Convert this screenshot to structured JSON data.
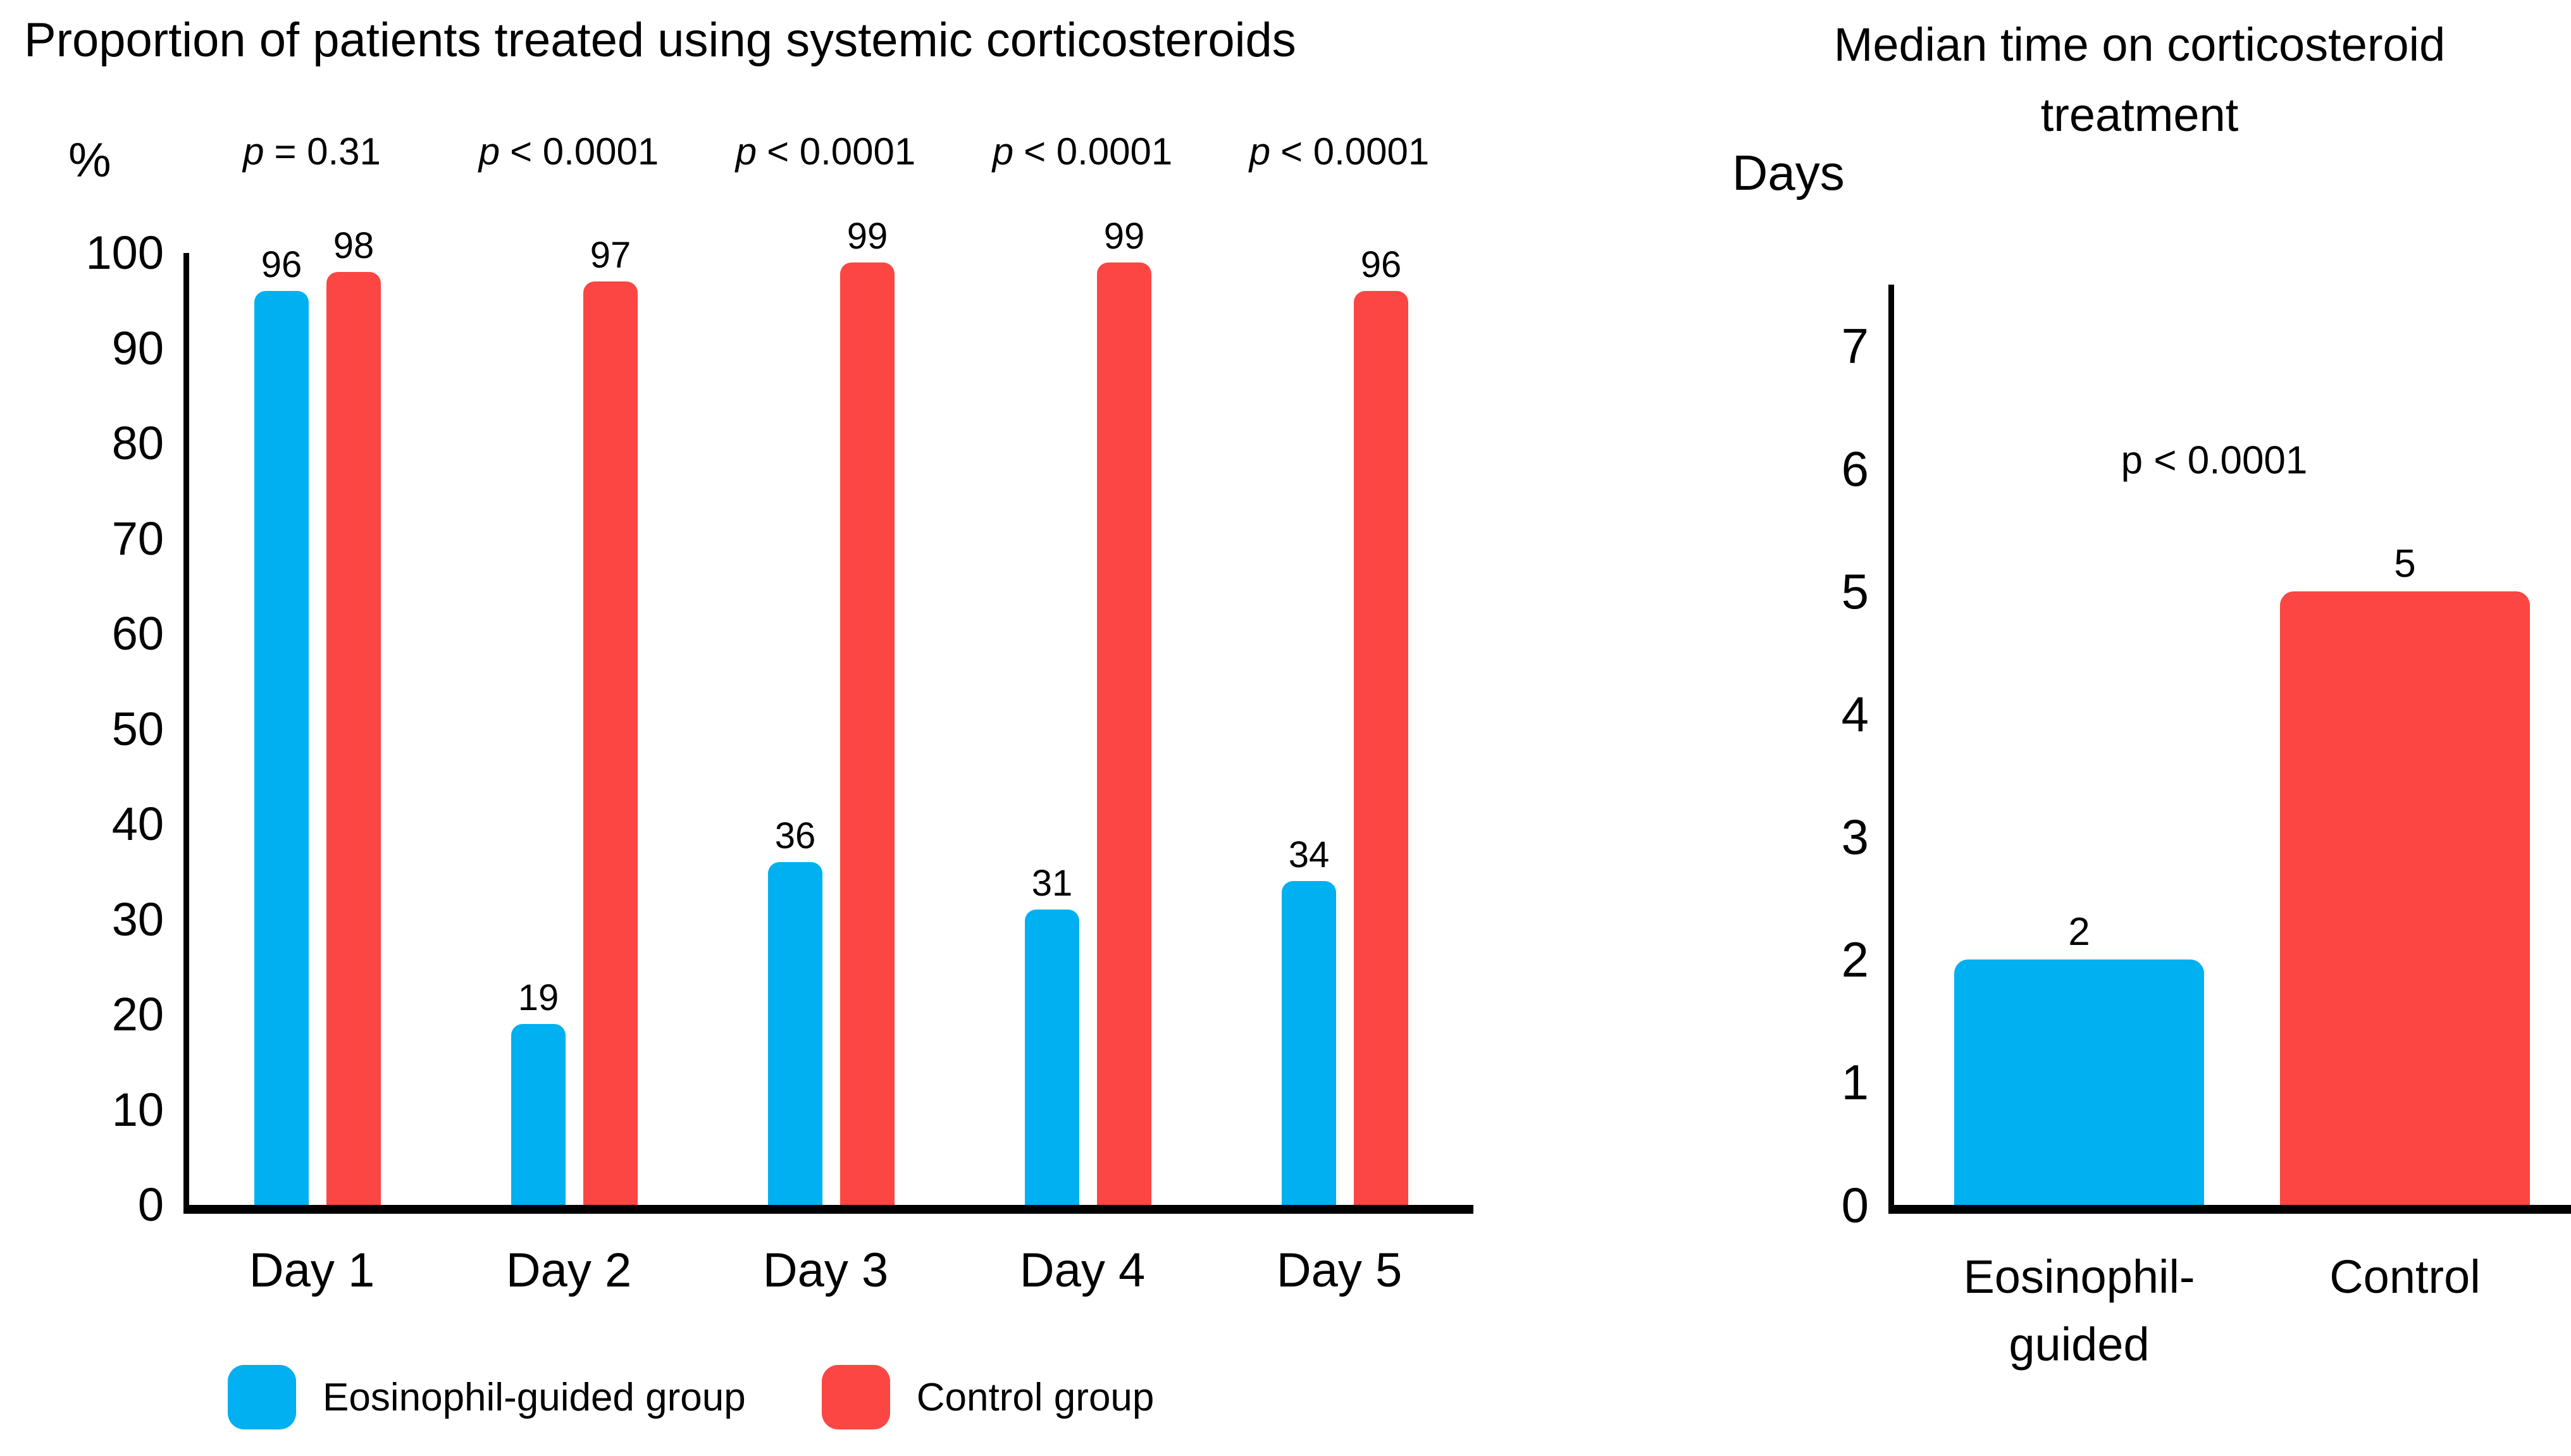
{
  "figure": {
    "background": "#ffffff",
    "text_color": "#000000"
  },
  "chart_data": [
    {
      "type": "bar",
      "title": "Proportion of patients treated using systemic corticosteroids",
      "y_axis_label": "%",
      "ylim": [
        0,
        100
      ],
      "y_ticks": [
        100,
        90,
        80,
        70,
        60,
        50,
        40,
        30,
        20,
        10,
        0
      ],
      "categories": [
        "Day 1",
        "Day 2",
        "Day 3",
        "Day 4",
        "Day 5"
      ],
      "series": [
        {
          "name": "Eosinophil-guided group",
          "color": "#00B0F0",
          "values": [
            96,
            19,
            36,
            31,
            34
          ]
        },
        {
          "name": "Control group",
          "color": "#FB4643",
          "values": [
            98,
            97,
            99,
            99,
            96
          ]
        }
      ],
      "p_values": [
        {
          "symbol": "p",
          "comparison": "= 0.31"
        },
        {
          "symbol": "p",
          "comparison": "< 0.0001"
        },
        {
          "symbol": "p",
          "comparison": "< 0.0001"
        },
        {
          "symbol": "p",
          "comparison": "< 0.0001"
        },
        {
          "symbol": "p",
          "comparison": "< 0.0001"
        }
      ],
      "grid": false,
      "legend_position": "bottom"
    },
    {
      "type": "bar",
      "title": "Median time on corticosteroid treatment",
      "title_lines": [
        "Median time on corticosteroid",
        "treatment"
      ],
      "y_axis_label": "Days",
      "ylim": [
        0,
        7
      ],
      "y_ticks": [
        7,
        6,
        5,
        4,
        3,
        2,
        1,
        0
      ],
      "categories": [
        "Eosinophil-guided",
        "Control"
      ],
      "category_lines": [
        {
          "line1": "Eosinophil-",
          "line2": "guided"
        },
        {
          "line1": "Control",
          "line2": ""
        }
      ],
      "values": [
        2,
        5
      ],
      "bar_colors": [
        "#00B0F0",
        "#FB4643"
      ],
      "p_value": "p < 0.0001",
      "grid": false
    }
  ]
}
